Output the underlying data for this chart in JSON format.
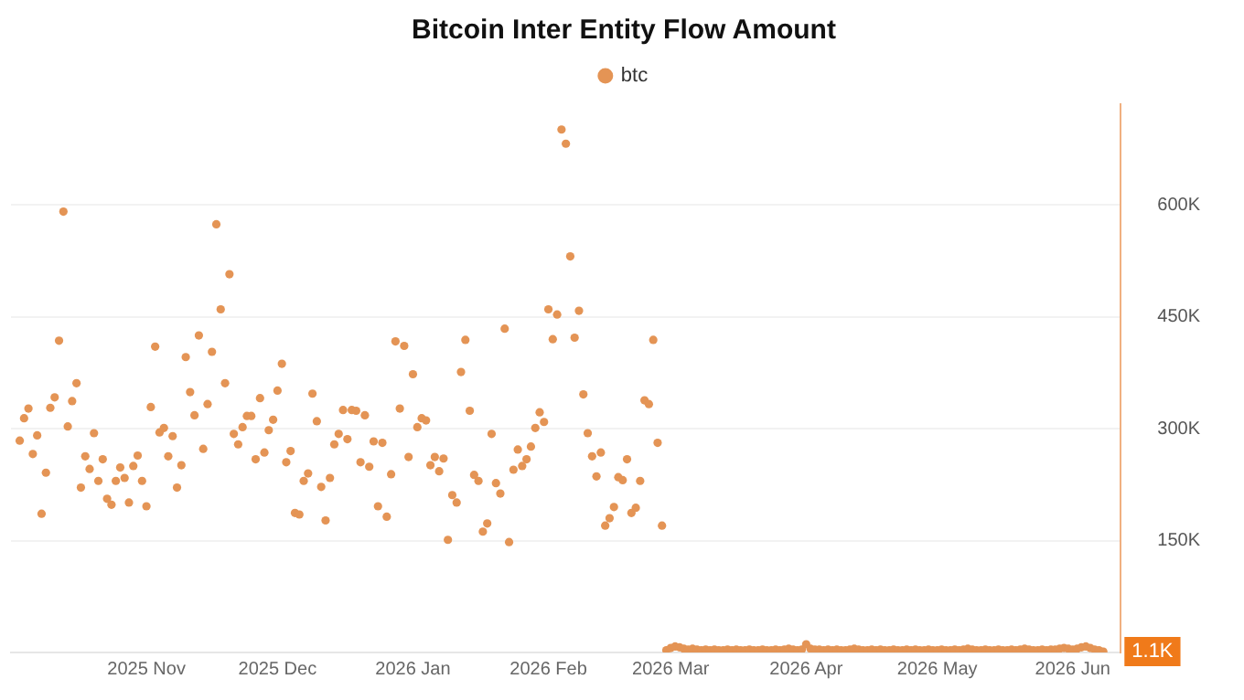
{
  "chart_data": {
    "type": "scatter",
    "title": "Bitcoin Inter Entity Flow Amount",
    "legend": "top",
    "grid": "y",
    "marker": "circle",
    "xlim": [
      "2025-10-01",
      "2026-06-12"
    ],
    "ylim": [
      0,
      735000
    ],
    "xticks": [
      {
        "value": "2025-11-01",
        "label": "2025 Nov"
      },
      {
        "value": "2025-12-01",
        "label": "2025 Dec"
      },
      {
        "value": "2026-01-01",
        "label": "2026 Jan"
      },
      {
        "value": "2026-02-01",
        "label": "2026 Feb"
      },
      {
        "value": "2026-03-01",
        "label": "2026 Mar"
      },
      {
        "value": "2026-04-01",
        "label": "2026 Apr"
      },
      {
        "value": "2026-05-01",
        "label": "2026 May"
      },
      {
        "value": "2026-06-01",
        "label": "2026 Jun"
      }
    ],
    "yticks": [
      {
        "value": 150000,
        "label": "150K"
      },
      {
        "value": 300000,
        "label": "300K"
      },
      {
        "value": 450000,
        "label": "450K"
      },
      {
        "value": 600000,
        "label": "600K"
      }
    ],
    "annotations": [
      {
        "text": "1.1K",
        "x": "2026-06-08",
        "y": 1100
      }
    ],
    "series": [
      {
        "name": "btc",
        "color": "#e49455",
        "x": [
          "2025-10-03",
          "2025-10-04",
          "2025-10-05",
          "2025-10-06",
          "2025-10-07",
          "2025-10-08",
          "2025-10-09",
          "2025-10-10",
          "2025-10-11",
          "2025-10-12",
          "2025-10-13",
          "2025-10-14",
          "2025-10-15",
          "2025-10-16",
          "2025-10-17",
          "2025-10-18",
          "2025-10-19",
          "2025-10-20",
          "2025-10-21",
          "2025-10-22",
          "2025-10-23",
          "2025-10-24",
          "2025-10-25",
          "2025-10-26",
          "2025-10-27",
          "2025-10-28",
          "2025-10-29",
          "2025-10-30",
          "2025-10-31",
          "2025-11-01",
          "2025-11-02",
          "2025-11-03",
          "2025-11-04",
          "2025-11-05",
          "2025-11-06",
          "2025-11-07",
          "2025-11-08",
          "2025-11-09",
          "2025-11-10",
          "2025-11-11",
          "2025-11-12",
          "2025-11-13",
          "2025-11-14",
          "2025-11-15",
          "2025-11-16",
          "2025-11-17",
          "2025-11-18",
          "2025-11-19",
          "2025-11-20",
          "2025-11-21",
          "2025-11-22",
          "2025-11-23",
          "2025-11-24",
          "2025-11-25",
          "2025-11-26",
          "2025-11-27",
          "2025-11-28",
          "2025-11-29",
          "2025-11-30",
          "2025-12-01",
          "2025-12-02",
          "2025-12-03",
          "2025-12-04",
          "2025-12-05",
          "2025-12-06",
          "2025-12-07",
          "2025-12-08",
          "2025-12-09",
          "2025-12-10",
          "2025-12-11",
          "2025-12-12",
          "2025-12-13",
          "2025-12-14",
          "2025-12-15",
          "2025-12-16",
          "2025-12-17",
          "2025-12-18",
          "2025-12-19",
          "2025-12-20",
          "2025-12-21",
          "2025-12-22",
          "2025-12-23",
          "2025-12-24",
          "2025-12-25",
          "2025-12-26",
          "2025-12-27",
          "2025-12-28",
          "2025-12-29",
          "2025-12-30",
          "2025-12-31",
          "2026-01-01",
          "2026-01-02",
          "2026-01-03",
          "2026-01-04",
          "2026-01-05",
          "2026-01-06",
          "2026-01-07",
          "2026-01-08",
          "2026-01-09",
          "2026-01-10",
          "2026-01-11",
          "2026-01-12",
          "2026-01-13",
          "2026-01-14",
          "2026-01-15",
          "2026-01-16",
          "2026-01-17",
          "2026-01-18",
          "2026-01-19",
          "2026-01-20",
          "2026-01-21",
          "2026-01-22",
          "2026-01-23",
          "2026-01-24",
          "2026-01-25",
          "2026-01-26",
          "2026-01-27",
          "2026-01-28",
          "2026-01-29",
          "2026-01-30",
          "2026-01-31",
          "2026-02-01",
          "2026-02-02",
          "2026-02-03",
          "2026-02-04",
          "2026-02-05",
          "2026-02-06",
          "2026-02-07",
          "2026-02-08",
          "2026-02-09",
          "2026-02-10",
          "2026-02-11",
          "2026-02-12",
          "2026-02-13",
          "2026-02-14",
          "2026-02-15",
          "2026-02-16",
          "2026-02-17",
          "2026-02-18",
          "2026-02-19",
          "2026-02-20",
          "2026-02-21",
          "2026-02-22",
          "2026-02-23",
          "2026-02-24",
          "2026-02-25",
          "2026-02-26",
          "2026-02-27",
          "2026-02-28",
          "2026-03-01",
          "2026-03-02",
          "2026-03-03",
          "2026-03-04",
          "2026-03-05",
          "2026-03-06",
          "2026-03-07",
          "2026-03-08",
          "2026-03-09",
          "2026-03-10",
          "2026-03-11",
          "2026-03-12",
          "2026-03-13",
          "2026-03-14",
          "2026-03-15",
          "2026-03-16",
          "2026-03-17",
          "2026-03-18",
          "2026-03-19",
          "2026-03-20",
          "2026-03-21",
          "2026-03-22",
          "2026-03-23",
          "2026-03-24",
          "2026-03-25",
          "2026-03-26",
          "2026-03-27",
          "2026-03-28",
          "2026-03-29",
          "2026-03-30",
          "2026-03-31",
          "2026-04-01",
          "2026-04-02",
          "2026-04-03",
          "2026-04-04",
          "2026-04-05",
          "2026-04-06",
          "2026-04-07",
          "2026-04-08",
          "2026-04-09",
          "2026-04-10",
          "2026-04-11",
          "2026-04-12",
          "2026-04-13",
          "2026-04-14",
          "2026-04-15",
          "2026-04-16",
          "2026-04-17",
          "2026-04-18",
          "2026-04-19",
          "2026-04-20",
          "2026-04-21",
          "2026-04-22",
          "2026-04-23",
          "2026-04-24",
          "2026-04-25",
          "2026-04-26",
          "2026-04-27",
          "2026-04-28",
          "2026-04-29",
          "2026-04-30",
          "2026-05-01",
          "2026-05-02",
          "2026-05-03",
          "2026-05-04",
          "2026-05-05",
          "2026-05-06",
          "2026-05-07",
          "2026-05-08",
          "2026-05-09",
          "2026-05-10",
          "2026-05-11",
          "2026-05-12",
          "2026-05-13",
          "2026-05-14",
          "2026-05-15",
          "2026-05-16",
          "2026-05-17",
          "2026-05-18",
          "2026-05-19",
          "2026-05-20",
          "2026-05-21",
          "2026-05-22",
          "2026-05-23",
          "2026-05-24",
          "2026-05-25",
          "2026-05-26",
          "2026-05-27",
          "2026-05-28",
          "2026-05-29",
          "2026-05-30",
          "2026-05-31",
          "2026-06-01",
          "2026-06-02",
          "2026-06-03",
          "2026-06-04",
          "2026-06-05",
          "2026-06-06",
          "2026-06-07",
          "2026-06-08"
        ],
        "values": [
          284000,
          314000,
          327000,
          266000,
          291000,
          186000,
          241000,
          328000,
          342000,
          418000,
          591000,
          303000,
          337000,
          361000,
          221000,
          263000,
          246000,
          294000,
          230000,
          259000,
          206000,
          198000,
          230000,
          248000,
          234000,
          201000,
          250000,
          264000,
          230000,
          196000,
          329000,
          410000,
          295000,
          301000,
          263000,
          290000,
          221000,
          251000,
          396000,
          349000,
          318000,
          425000,
          273000,
          333000,
          403000,
          574000,
          460000,
          361000,
          507000,
          293000,
          279000,
          302000,
          317000,
          317000,
          259000,
          341000,
          268000,
          298000,
          312000,
          351000,
          387000,
          255000,
          270000,
          187000,
          185000,
          230000,
          240000,
          347000,
          310000,
          222000,
          177000,
          234000,
          279000,
          293000,
          325000,
          286000,
          325000,
          324000,
          255000,
          318000,
          249000,
          283000,
          196000,
          281000,
          182000,
          239000,
          417000,
          327000,
          411000,
          262000,
          373000,
          302000,
          314000,
          311000,
          251000,
          262000,
          243000,
          260000,
          151000,
          211000,
          201000,
          376000,
          419000,
          324000,
          238000,
          230000,
          162000,
          173000,
          293000,
          227000,
          213000,
          434000,
          148000,
          245000,
          272000,
          250000,
          259000,
          276000,
          301000,
          322000,
          309000,
          460000,
          420000,
          453000,
          701000,
          682000,
          531000,
          422000,
          458000,
          346000,
          294000,
          263000,
          236000,
          268000,
          170000,
          180000,
          195000,
          235000,
          231000,
          259000,
          187000,
          194000,
          230000,
          338000,
          333000,
          419000,
          281000,
          170000,
          3000,
          6000,
          8000,
          7000,
          5000,
          4000,
          5000,
          4000,
          3000,
          4000,
          3000,
          4000,
          3000,
          3000,
          4000,
          3000,
          4000,
          3000,
          3000,
          4000,
          3000,
          3000,
          4000,
          3000,
          3000,
          4000,
          3000,
          4000,
          5000,
          4000,
          3000,
          4000,
          11000,
          5000,
          4000,
          4000,
          3000,
          4000,
          3000,
          4000,
          3000,
          3000,
          4000,
          5000,
          4000,
          3000,
          3000,
          4000,
          3000,
          4000,
          3000,
          3000,
          4000,
          3000,
          3000,
          4000,
          3000,
          4000,
          3000,
          3000,
          4000,
          3000,
          3000,
          4000,
          3000,
          3000,
          4000,
          3000,
          4000,
          5000,
          4000,
          3000,
          3000,
          4000,
          3000,
          3000,
          4000,
          3000,
          3000,
          4000,
          3000,
          4000,
          5000,
          4000,
          3000,
          3000,
          4000,
          3000,
          4000,
          4000,
          5000,
          6000,
          5000,
          4000,
          5000,
          7000,
          8000,
          6000,
          4000,
          3000,
          1100
        ]
      }
    ]
  }
}
